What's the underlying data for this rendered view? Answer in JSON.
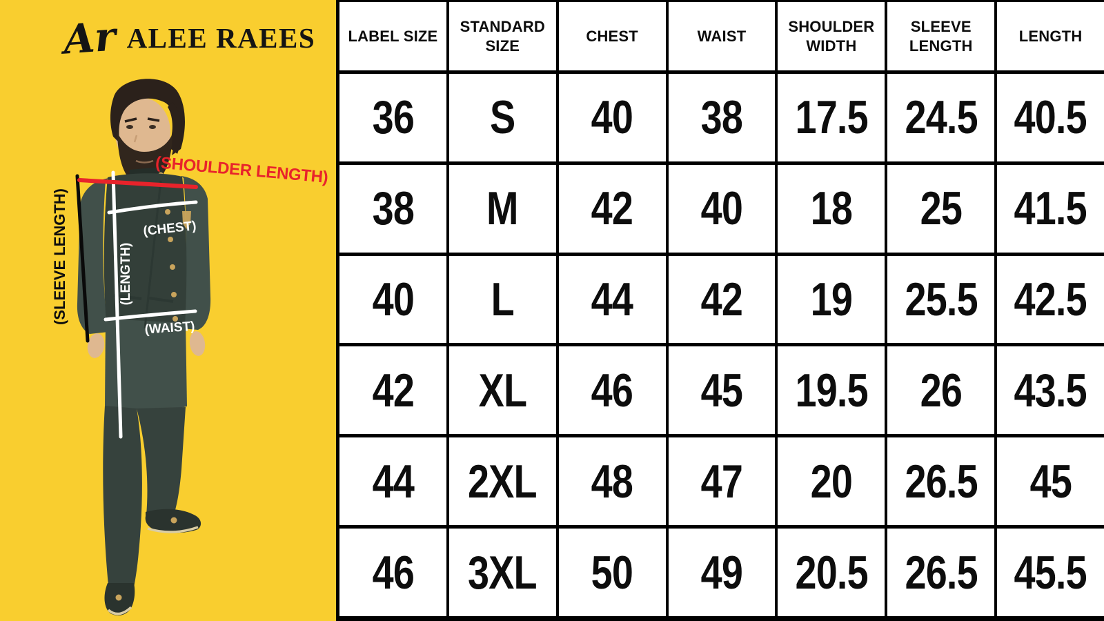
{
  "brand": {
    "monogram": "Ar",
    "name": "ALEE RAEES"
  },
  "annotations": {
    "shoulder_length": "(SHOULDER LENGTH)",
    "sleeve_length": "(SLEEVE LENGTH)",
    "chest": "(CHEST)",
    "length": "(LENGTH)",
    "waist": "(WAIST)"
  },
  "size_table": {
    "columns": [
      "LABEL SIZE",
      "STANDARD SIZE",
      "CHEST",
      "WAIST",
      "SHOULDER WIDTH",
      "SLEEVE LENGTH",
      "LENGTH"
    ],
    "rows": [
      [
        "36",
        "S",
        "40",
        "38",
        "17.5",
        "24.5",
        "40.5"
      ],
      [
        "38",
        "M",
        "42",
        "40",
        "18",
        "25",
        "41.5"
      ],
      [
        "40",
        "L",
        "44",
        "42",
        "19",
        "25.5",
        "42.5"
      ],
      [
        "42",
        "XL",
        "46",
        "45",
        "19.5",
        "26",
        "43.5"
      ],
      [
        "44",
        "2XL",
        "48",
        "47",
        "20",
        "26.5",
        "45"
      ],
      [
        "46",
        "3XL",
        "50",
        "49",
        "20.5",
        "26.5",
        "45.5"
      ]
    ]
  },
  "colors": {
    "panel_yellow": "#F9CE2F",
    "annotation_red": "#E8232B",
    "annotation_white": "#FFFFFF",
    "table_border": "#000000",
    "table_bg": "#FFFFFF",
    "text_dark": "#141414",
    "kurta_green": "#41504A",
    "vest_green": "#333F39",
    "trouser_green": "#36423D",
    "gold": "#C9A45C"
  }
}
